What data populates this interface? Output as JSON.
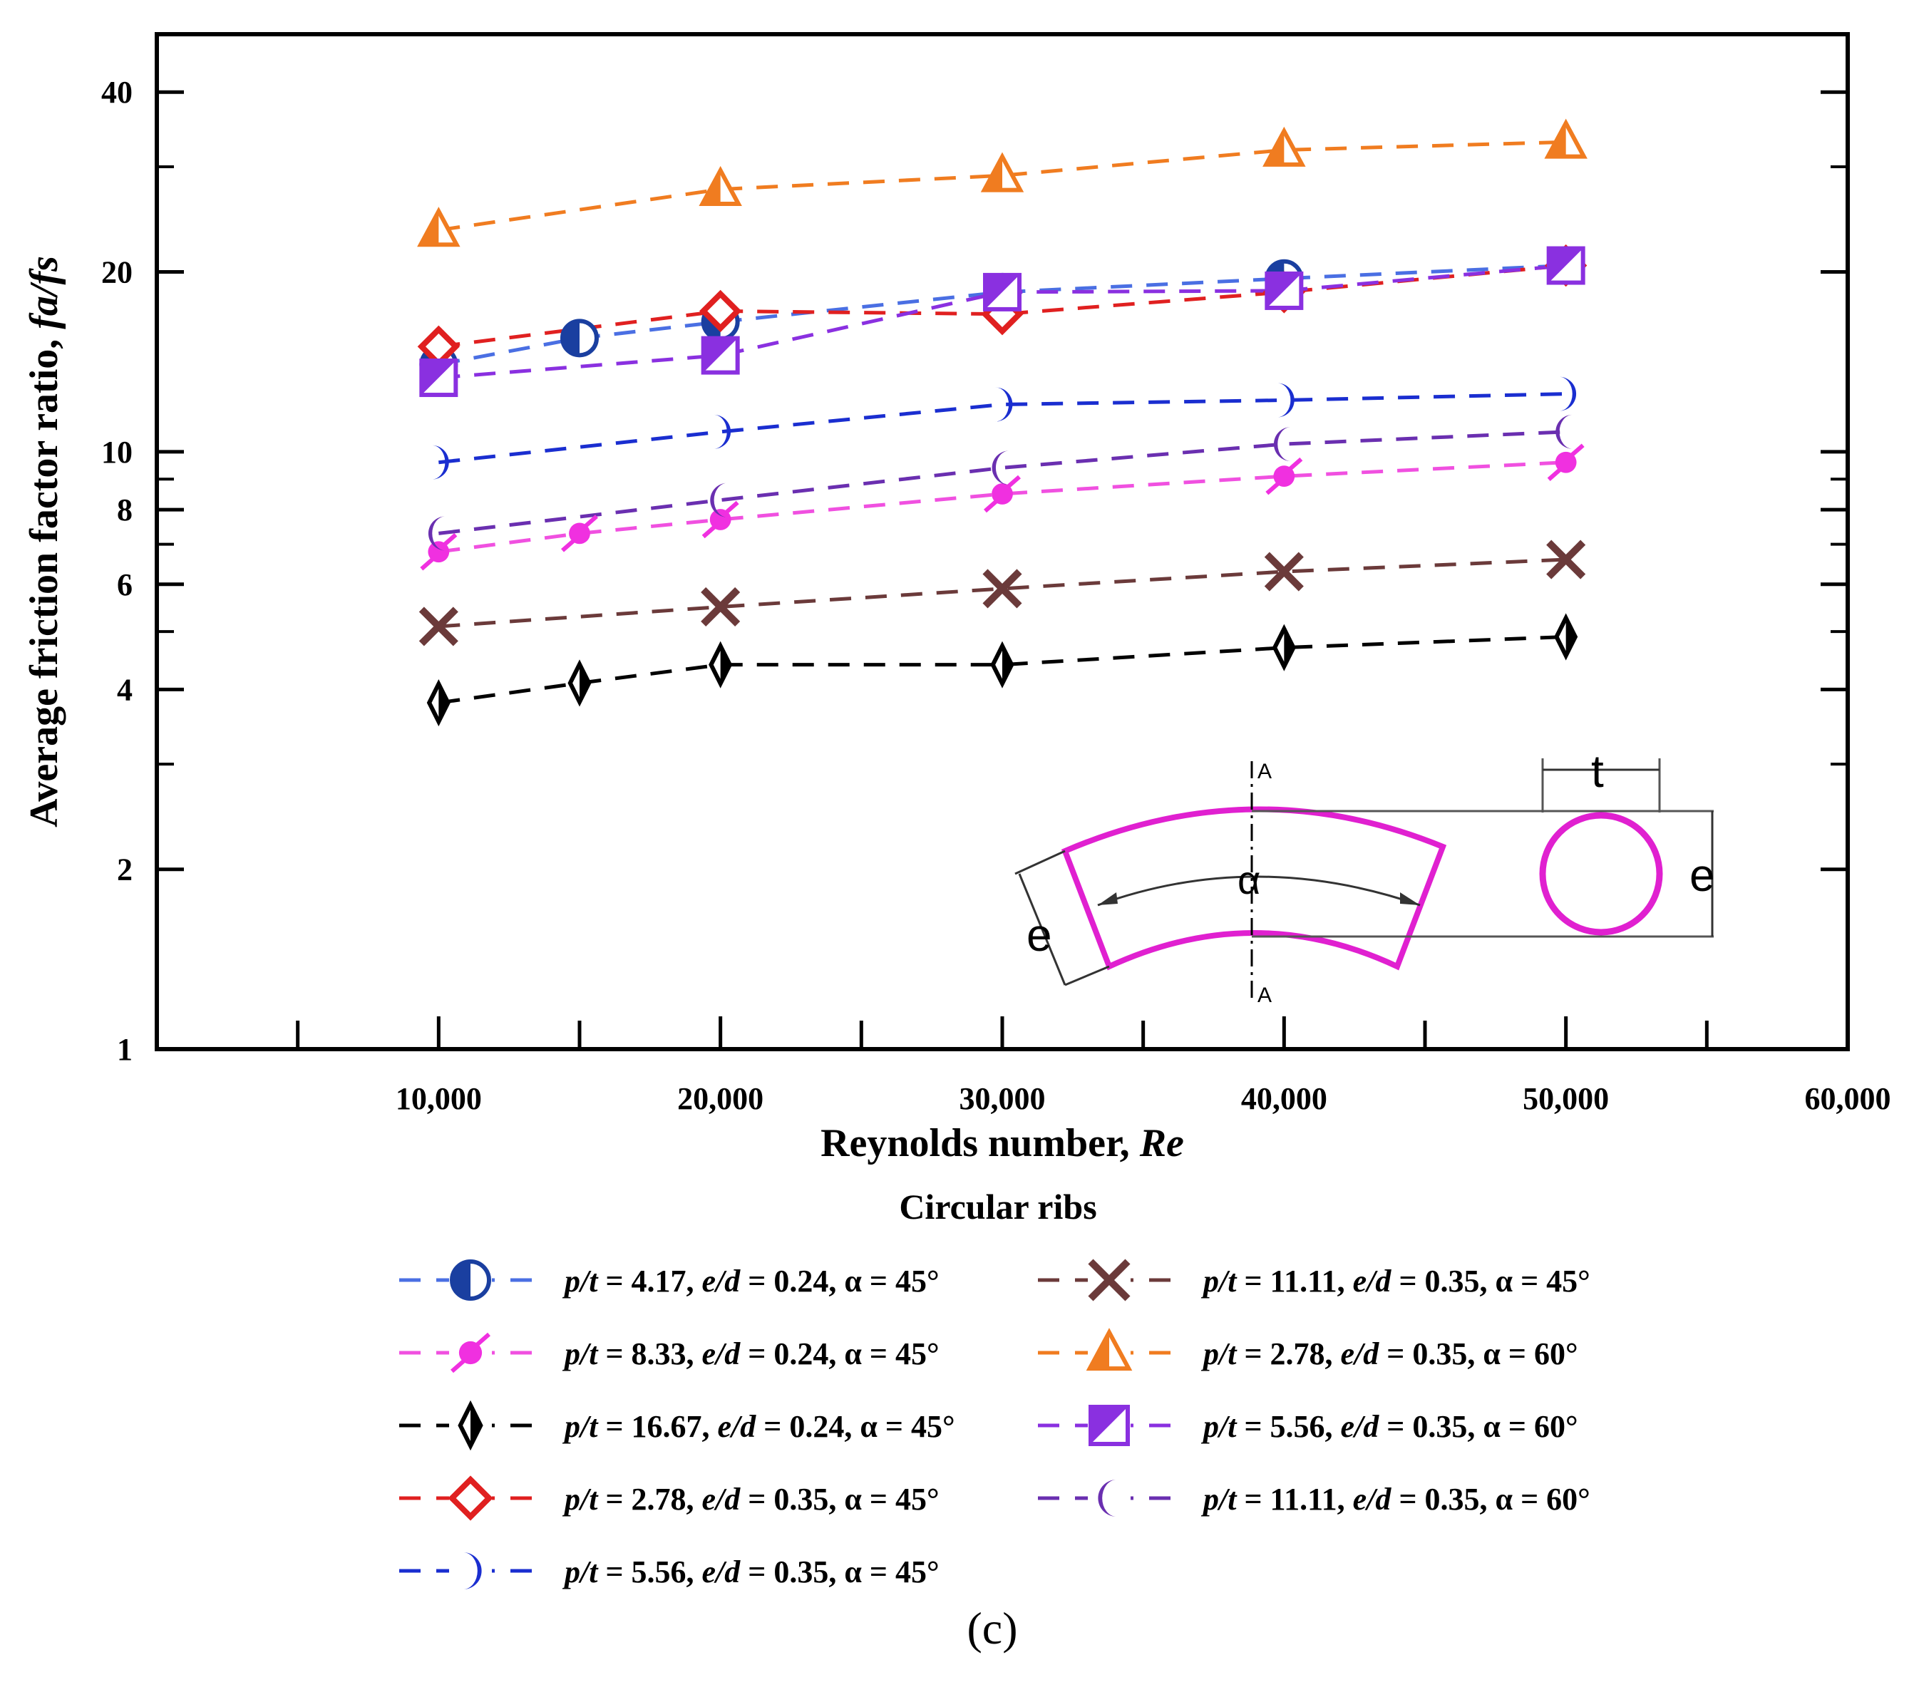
{
  "chart_data": {
    "type": "line",
    "xlabel": "Reynolds number, ",
    "xlabel_italic": "Re",
    "ylabel": "Average friction factor ratio, ",
    "ylabel_italic": "fa/fs",
    "y_scale": "log",
    "xlim": [
      0,
      60000
    ],
    "ylim": [
      1,
      50
    ],
    "x_ticks": [
      10000,
      20000,
      30000,
      40000,
      50000,
      60000
    ],
    "x_tick_labels": [
      "10,000",
      "20,000",
      "30,000",
      "40,000",
      "50,000",
      "60,000"
    ],
    "y_ticks": [
      1,
      2,
      4,
      6,
      8,
      10,
      20,
      40
    ],
    "y_tick_labels": [
      "1",
      "2",
      "4",
      "6",
      "8",
      "10",
      "20",
      "40"
    ],
    "legend_title": "Circular ribs",
    "caption": "(c)",
    "series": [
      {
        "name": "p/t = 4.17, e/d = 0.24, α = 45°",
        "parts": [
          "p/t",
          " = 4.17, ",
          "e/d",
          " = 0.24, α = 45°"
        ],
        "color": "#4a6fe3",
        "marker_color": "#1a3fa0",
        "marker": "half-circle",
        "x": [
          10000,
          15000,
          20000,
          30000,
          40000,
          50000
        ],
        "y": [
          14.0,
          15.5,
          16.5,
          18.5,
          19.5,
          20.5
        ]
      },
      {
        "name": "p/t = 8.33, e/d = 0.24, α = 45°",
        "parts": [
          "p/t",
          " = 8.33, ",
          "e/d",
          " = 0.24, α = 45°"
        ],
        "color": "#f050e0",
        "marker_color": "#f030e0",
        "marker": "pinwheel",
        "x": [
          10000,
          15000,
          20000,
          30000,
          40000,
          50000
        ],
        "y": [
          6.8,
          7.3,
          7.7,
          8.5,
          9.1,
          9.6
        ]
      },
      {
        "name": "p/t = 16.67, e/d = 0.24, α = 45°",
        "parts": [
          "p/t",
          " = 16.67, ",
          "e/d",
          " = 0.24, α = 45°"
        ],
        "color": "#000000",
        "marker_color": "#000000",
        "marker": "thin-diamond",
        "x": [
          10000,
          15000,
          20000,
          30000,
          40000,
          50000
        ],
        "y": [
          3.8,
          4.1,
          4.4,
          4.4,
          4.7,
          4.9
        ]
      },
      {
        "name": "p/t = 2.78, e/d = 0.35, α = 45°",
        "parts": [
          "p/t",
          " = 2.78, ",
          "e/d",
          " = 0.35, α = 45°"
        ],
        "color": "#e02020",
        "marker_color": "#e02020",
        "marker": "diamond",
        "x": [
          10000,
          20000,
          30000,
          40000,
          50000
        ],
        "y": [
          15.0,
          17.2,
          17.0,
          18.5,
          20.5
        ]
      },
      {
        "name": "p/t = 5.56, e/d = 0.35, α = 45°",
        "parts": [
          "p/t",
          " = 5.56, ",
          "e/d",
          " = 0.35, α = 45°"
        ],
        "color": "#1a2ed0",
        "marker_color": "#1a2ed0",
        "marker": "right-crescent",
        "x": [
          10000,
          20000,
          30000,
          40000,
          50000
        ],
        "y": [
          9.6,
          10.8,
          12.0,
          12.2,
          12.5
        ]
      },
      {
        "name": "p/t = 11.11, e/d = 0.35, α = 45°",
        "parts": [
          "p/t",
          " = 11.11, ",
          "e/d",
          " = 0.35, α = 45°"
        ],
        "color": "#6b3a3a",
        "marker_color": "#6b3a3a",
        "marker": "x",
        "x": [
          10000,
          20000,
          30000,
          40000,
          50000
        ],
        "y": [
          5.1,
          5.5,
          5.9,
          6.3,
          6.6
        ]
      },
      {
        "name": "p/t = 2.78, e/d = 0.35, α = 60°",
        "parts": [
          "p/t",
          " = 2.78, ",
          "e/d",
          " = 0.35, α = 60°"
        ],
        "color": "#f07c20",
        "marker_color": "#f07c20",
        "marker": "half-triangle",
        "x": [
          10000,
          20000,
          30000,
          40000,
          50000
        ],
        "y": [
          23.5,
          27.5,
          29.0,
          32.0,
          33.0
        ]
      },
      {
        "name": "p/t = 5.56, e/d = 0.35, α = 60°",
        "parts": [
          "p/t",
          " = 5.56, ",
          "e/d",
          " = 0.35, α = 60°"
        ],
        "color": "#8a30e0",
        "marker_color": "#8a30e0",
        "marker": "half-square",
        "x": [
          10000,
          20000,
          30000,
          40000,
          50000
        ],
        "y": [
          13.3,
          14.5,
          18.5,
          18.6,
          20.5
        ]
      },
      {
        "name": "p/t = 11.11, e/d = 0.35, α = 60°",
        "parts": [
          "p/t",
          " = 11.11, ",
          "e/d",
          " = 0.35, α = 60°"
        ],
        "color": "#6a2fb0",
        "marker_color": "#6a2fb0",
        "marker": "left-crescent",
        "x": [
          10000,
          20000,
          30000,
          40000,
          50000
        ],
        "y": [
          7.3,
          8.3,
          9.4,
          10.3,
          10.8
        ]
      }
    ],
    "schematic": {
      "label_A_top": "A",
      "label_A_bottom": "A",
      "label_alpha": "α",
      "label_e_left": "e",
      "label_t": "t",
      "label_e_right": "e",
      "color": "#e020d0"
    }
  }
}
